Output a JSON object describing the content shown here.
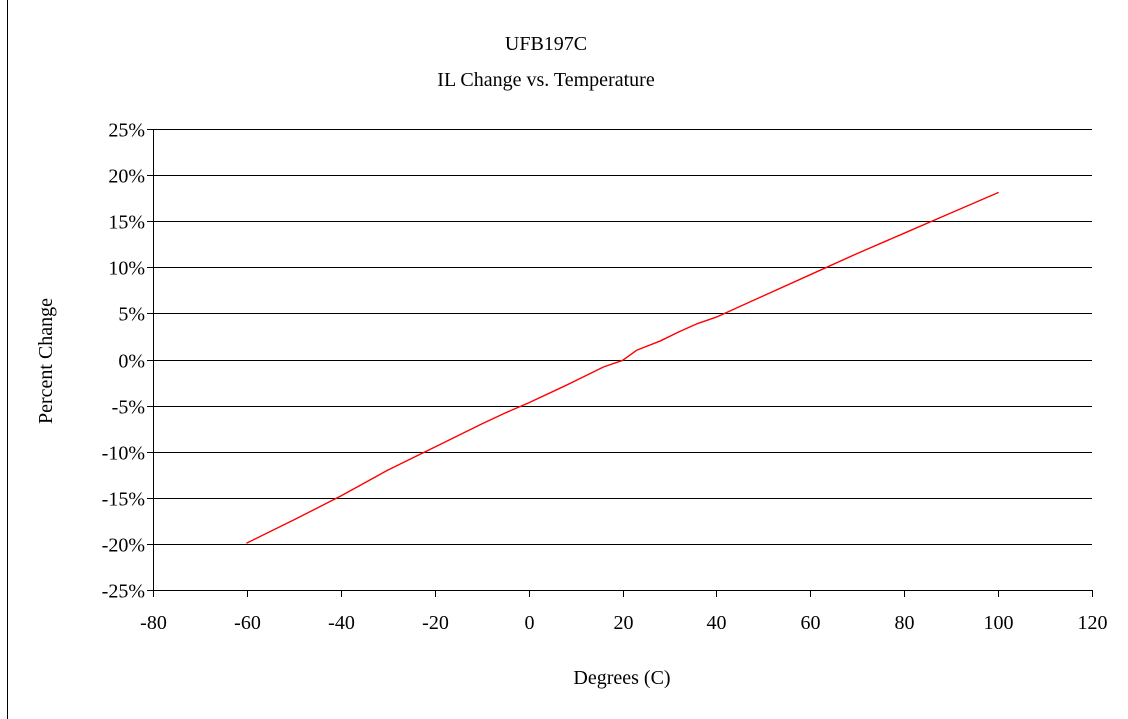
{
  "chart_data": {
    "type": "line",
    "title": "UFB197C",
    "subtitle": "IL Change vs. Temperature",
    "xlabel": "Degrees (C)",
    "ylabel": "Percent Change",
    "xlim": [
      -80,
      120
    ],
    "ylim": [
      -25,
      25
    ],
    "x_ticks": [
      -80,
      -60,
      -40,
      -20,
      0,
      20,
      40,
      60,
      80,
      100,
      120
    ],
    "x_tick_labels": [
      "-80",
      "-60",
      "-40",
      "-20",
      "0",
      "20",
      "40",
      "60",
      "80",
      "100",
      "120"
    ],
    "y_ticks": [
      -25,
      -20,
      -15,
      -10,
      -5,
      0,
      5,
      10,
      15,
      20,
      25
    ],
    "y_tick_labels": [
      "-25%",
      "-20%",
      "-15%",
      "-10%",
      "-5%",
      "0%",
      "5%",
      "10%",
      "15%",
      "20%",
      "25%"
    ],
    "grid": "horizontal",
    "legend": "none",
    "series": [
      {
        "color": "#ff0000",
        "x": [
          -60,
          -50,
          -40,
          -30,
          -20,
          -10,
          -5,
          0,
          8,
          16,
          20,
          23,
          28,
          32,
          36,
          40,
          50,
          60,
          70,
          80,
          90,
          100
        ],
        "y": [
          -19.9,
          -17.4,
          -14.8,
          -12.0,
          -9.5,
          -7.0,
          -5.8,
          -4.7,
          -2.8,
          -0.8,
          -0.1,
          1.0,
          2.0,
          3.0,
          3.9,
          4.6,
          6.9,
          9.2,
          11.5,
          13.7,
          15.9,
          18.1
        ]
      }
    ]
  }
}
